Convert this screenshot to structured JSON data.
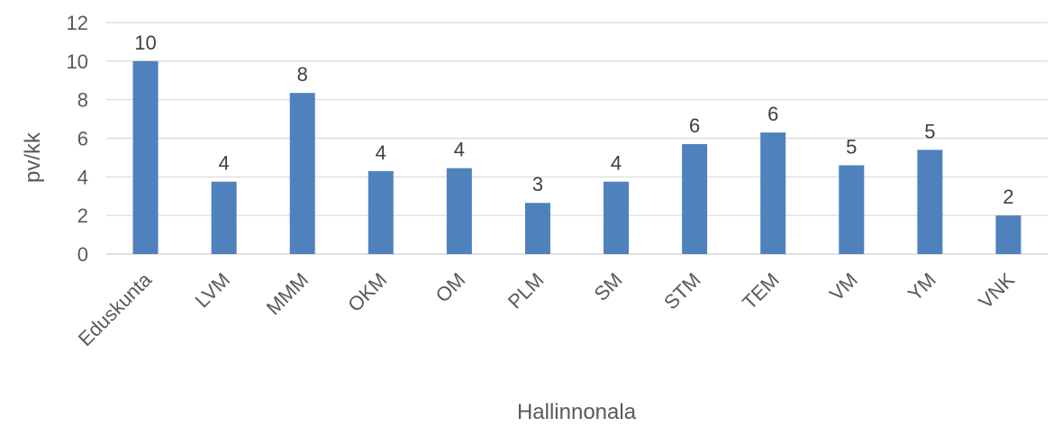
{
  "chart_data": {
    "type": "bar",
    "title": "",
    "xlabel": "Hallinnonala",
    "ylabel": "pv/kk",
    "categories": [
      "Eduskunta",
      "LVM",
      "MMM",
      "OKM",
      "OM",
      "PLM",
      "SM",
      "STM",
      "TEM",
      "VM",
      "YM",
      "VNK"
    ],
    "values": [
      10.0,
      3.75,
      8.35,
      4.3,
      4.45,
      2.65,
      3.75,
      5.7,
      6.3,
      4.6,
      5.4,
      2.0
    ],
    "data_labels": [
      "10",
      "4",
      "8",
      "4",
      "4",
      "3",
      "4",
      "6",
      "6",
      "5",
      "5",
      "2"
    ],
    "yticks": [
      "0",
      "2",
      "4",
      "6",
      "8",
      "10",
      "12"
    ],
    "ylim": [
      0,
      12
    ],
    "grid": true,
    "legend": "none",
    "bar_color": "#4f81bd",
    "grid_color": "#d9d9d9"
  }
}
